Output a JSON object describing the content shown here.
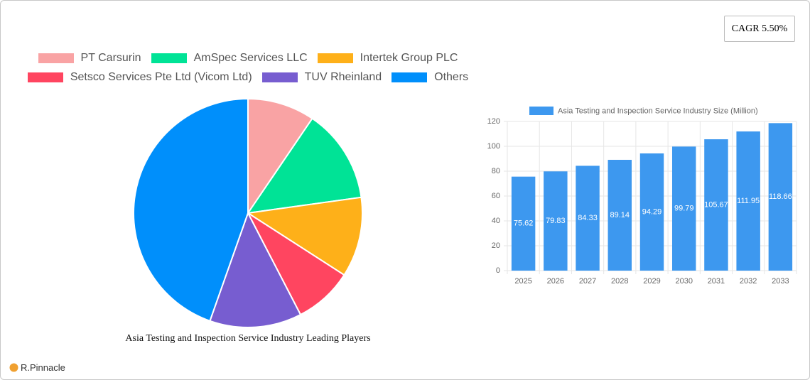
{
  "cagr": "CAGR 5.50%",
  "brand": "R.Pinnacle",
  "chart_data": [
    {
      "type": "pie",
      "title": "Asia Testing and Inspection Service Industry Leading Players",
      "categories": [
        "PT Carsurin",
        "AmSpec Services LLC",
        "Intertek Group PLC",
        "Setsco Services Pte Ltd (Vicom Ltd)",
        "TUV Rheinland",
        "Others"
      ],
      "values": [
        9.5,
        13.3,
        11.3,
        8.3,
        13,
        44.6
      ],
      "colors": [
        "#f9a3a4",
        "#00e396",
        "#feb019",
        "#ff4560",
        "#775dd0",
        "#008ffb"
      ]
    },
    {
      "type": "bar",
      "categories": [
        "2025",
        "2026",
        "2027",
        "2028",
        "2029",
        "2030",
        "2031",
        "2032",
        "2033"
      ],
      "series": [
        {
          "name": "Asia Testing and Inspection Service Industry Size (Million)",
          "color": "#3d98ef",
          "values": [
            75.62,
            79.83,
            84.33,
            89.14,
            94.29,
            99.79,
            105.67,
            111.95,
            118.66
          ]
        }
      ],
      "ylim": [
        0,
        120
      ],
      "yticks": [
        0,
        20,
        40,
        60,
        80,
        100,
        120
      ],
      "grid": true
    }
  ]
}
